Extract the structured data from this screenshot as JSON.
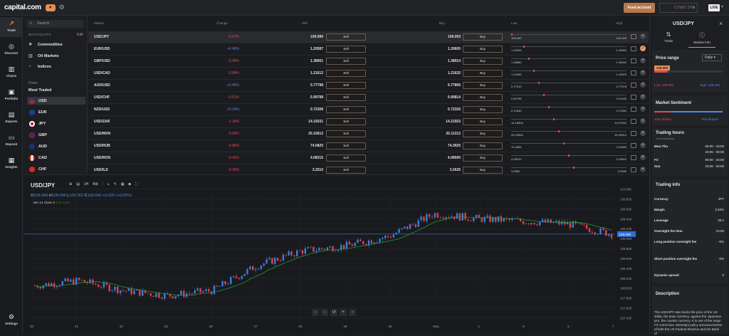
{
  "app": {
    "logo": "capital.com",
    "fund_button": "Fund account",
    "account": "CYSEC CFD",
    "live": "LIVE"
  },
  "nav": [
    {
      "label": "Trade",
      "icon": "trade-icon"
    },
    {
      "label": "Discover",
      "icon": "discover-icon"
    },
    {
      "label": "Charts",
      "icon": "charts-icon"
    },
    {
      "label": "Portfolio",
      "icon": "portfolio-icon"
    },
    {
      "label": "Reports",
      "icon": "reports-icon"
    },
    {
      "label": "Deposit",
      "icon": "deposit-icon"
    },
    {
      "label": "Insights",
      "icon": "insights-icon"
    },
    {
      "label": "Settings",
      "icon": "settings-icon"
    }
  ],
  "watchlist": {
    "search_placeholder": "Search",
    "heading": "WATCHLISTS",
    "edit": "Edit",
    "lists": [
      "Commodities",
      "Oil Markets",
      "Indices"
    ],
    "section": "Forex",
    "subsection": "Most Traded",
    "currencies": [
      "USD",
      "EUR",
      "JPY",
      "GBP",
      "AUD",
      "CAD",
      "CHF"
    ]
  },
  "table": {
    "headers": {
      "market": "Market",
      "change": "Change",
      "sell": "Sell",
      "buy": "Buy",
      "low": "Low",
      "high": "High"
    },
    "sell_label": "Sell",
    "buy_label": "Buy",
    "rows": [
      {
        "market": "USD/JPY",
        "change": "-0.07%",
        "sell": "109.090",
        "buy": "109.093",
        "low": "109.090",
        "high": "109.429"
      },
      {
        "market": "EUR/USD",
        "change": "+0.45%",
        "sell": "1.20587",
        "buy": "1.20605",
        "low": "1.19929",
        "high": "1.20599"
      },
      {
        "market": "GBP/USD",
        "change": "-0.08%",
        "sell": "1.38901",
        "buy": "1.38914",
        "low": "1.38850",
        "high": "1.39162"
      },
      {
        "market": "USD/CAD",
        "change": "-0.84%",
        "sell": "1.21612",
        "buy": "1.21632",
        "low": "1.21605",
        "high": "1.22875"
      },
      {
        "market": "AUD/USD",
        "change": "+0.45%",
        "sell": "0.77798",
        "buy": "0.77806",
        "low": "0.77010",
        "high": "0.77578"
      },
      {
        "market": "USD/CHF",
        "change": "-0.51%",
        "sell": "0.90798",
        "buy": "0.90814",
        "low": "0.90798",
        "high": "0.91445"
      },
      {
        "market": "NZD/USD",
        "change": "+0.24%",
        "sell": "0.72308",
        "buy": "0.72326",
        "low": "0.71840",
        "high": "0.72284"
      },
      {
        "market": "USD/ZAR",
        "change": "-1.18%",
        "sell": "14.15031",
        "buy": "14.21553",
        "low": "14.18904",
        "high": "14.37263"
      },
      {
        "market": "USD/MXN",
        "change": "-0.69%",
        "sell": "20.10612",
        "buy": "20.11312",
        "low": "20.10554",
        "high": "20.29514"
      },
      {
        "market": "USD/RUB",
        "change": "-0.86%",
        "sell": "74.0820",
        "buy": "74.3925",
        "low": "74.4655",
        "high": "74.8365"
      },
      {
        "market": "USD/RON",
        "change": "-0.43%",
        "sell": "4.08315",
        "buy": "4.08590",
        "low": "4.08312",
        "high": "4.10502"
      },
      {
        "market": "USD/ILS",
        "change": "-0.26%",
        "sell": "3.2510",
        "buy": "3.2635",
        "low": "3.2560",
        "high": "3.2635"
      }
    ]
  },
  "chart": {
    "symbol": "USD/JPY",
    "toolbar": [
      "1H",
      "Bid"
    ],
    "ohlc": {
      "o_label": "O",
      "o": "109.068",
      "h_label": "H",
      "h": "109.096",
      "l_label": "L",
      "l": "109.062",
      "c_label": "C",
      "c": "109.090",
      "chg": "+0.020 (+0.02%)"
    },
    "ma_label": "MA 14 close 0",
    "ma_value": "109.1312",
    "current_price": "109.090",
    "y_ticks": [
      "110.000",
      "109.800",
      "109.600",
      "109.400",
      "109.200",
      "109.000",
      "108.800",
      "108.600",
      "108.400",
      "108.200",
      "108.000",
      "107.800",
      "107.600",
      "107.400"
    ],
    "x_ticks": [
      "20",
      "21",
      "22",
      "23",
      "26",
      "27",
      "28",
      "29",
      "30",
      "May",
      "4",
      "5",
      "6",
      "7"
    ]
  },
  "chart_data": {
    "type": "line",
    "title": "USD/JPY",
    "y_unit": "price",
    "ylim": [
      107.35,
      110.05
    ],
    "x": [
      "20",
      "21",
      "22",
      "23",
      "26",
      "27",
      "28",
      "29",
      "30",
      "May",
      "4",
      "5",
      "6",
      "7"
    ],
    "series": [
      {
        "values": [
          108.05,
          108.15,
          107.95,
          107.85,
          107.95,
          108.45,
          108.75,
          108.85,
          109.05,
          109.5,
          109.4,
          109.35,
          109.3,
          109.09
        ]
      }
    ]
  },
  "panel": {
    "title": "USD/JPY",
    "tabs": [
      "Trade",
      "Market info"
    ],
    "price_range": {
      "label": "Price range",
      "period": "Daily",
      "marker": "109.090",
      "low": "Low: 109.090",
      "high": "High: 109.429",
      "position": 0.0
    },
    "sentiment": {
      "label": "Market Sentiment",
      "sellers": "24% Sellers",
      "buyers": "76% Buyers",
      "sellers_pct": 24
    },
    "hours": {
      "label": "Trading hours",
      "sub": "Your local time",
      "rows": [
        {
          "day": "Mon-Thu",
          "t1": "00:00 - 23:00",
          "t2": "23:05 - 00:00"
        },
        {
          "day": "Fri",
          "t1": "00:00 - 23:00",
          "t2": ""
        },
        {
          "day": "Sun",
          "t1": "23:05 - 00:00",
          "t2": ""
        }
      ]
    },
    "info": {
      "label": "Trading info",
      "rows": [
        {
          "k": "Currency",
          "v": "JPY"
        },
        {
          "k": "Margin",
          "v": "3.33%"
        },
        {
          "k": "Leverage",
          "v": "30:1"
        },
        {
          "k": "Overnight fee time",
          "v": "23:00"
        },
        {
          "k": "Long position overnight fee",
          "v": "-0%"
        },
        {
          "k": "Short position overnight fee",
          "v": "-0%"
        },
        {
          "k": "Dynamic spread",
          "v": "0"
        }
      ]
    },
    "description": {
      "label": "Description",
      "text": "The USD/JPY rate tracks the price of the US dollar, the base currency, against the Japanese yen, the counter currency. It is one of the major FX currencies. Monetary policy announcements of both the US Federal Reserve and the Bank of"
    }
  }
}
